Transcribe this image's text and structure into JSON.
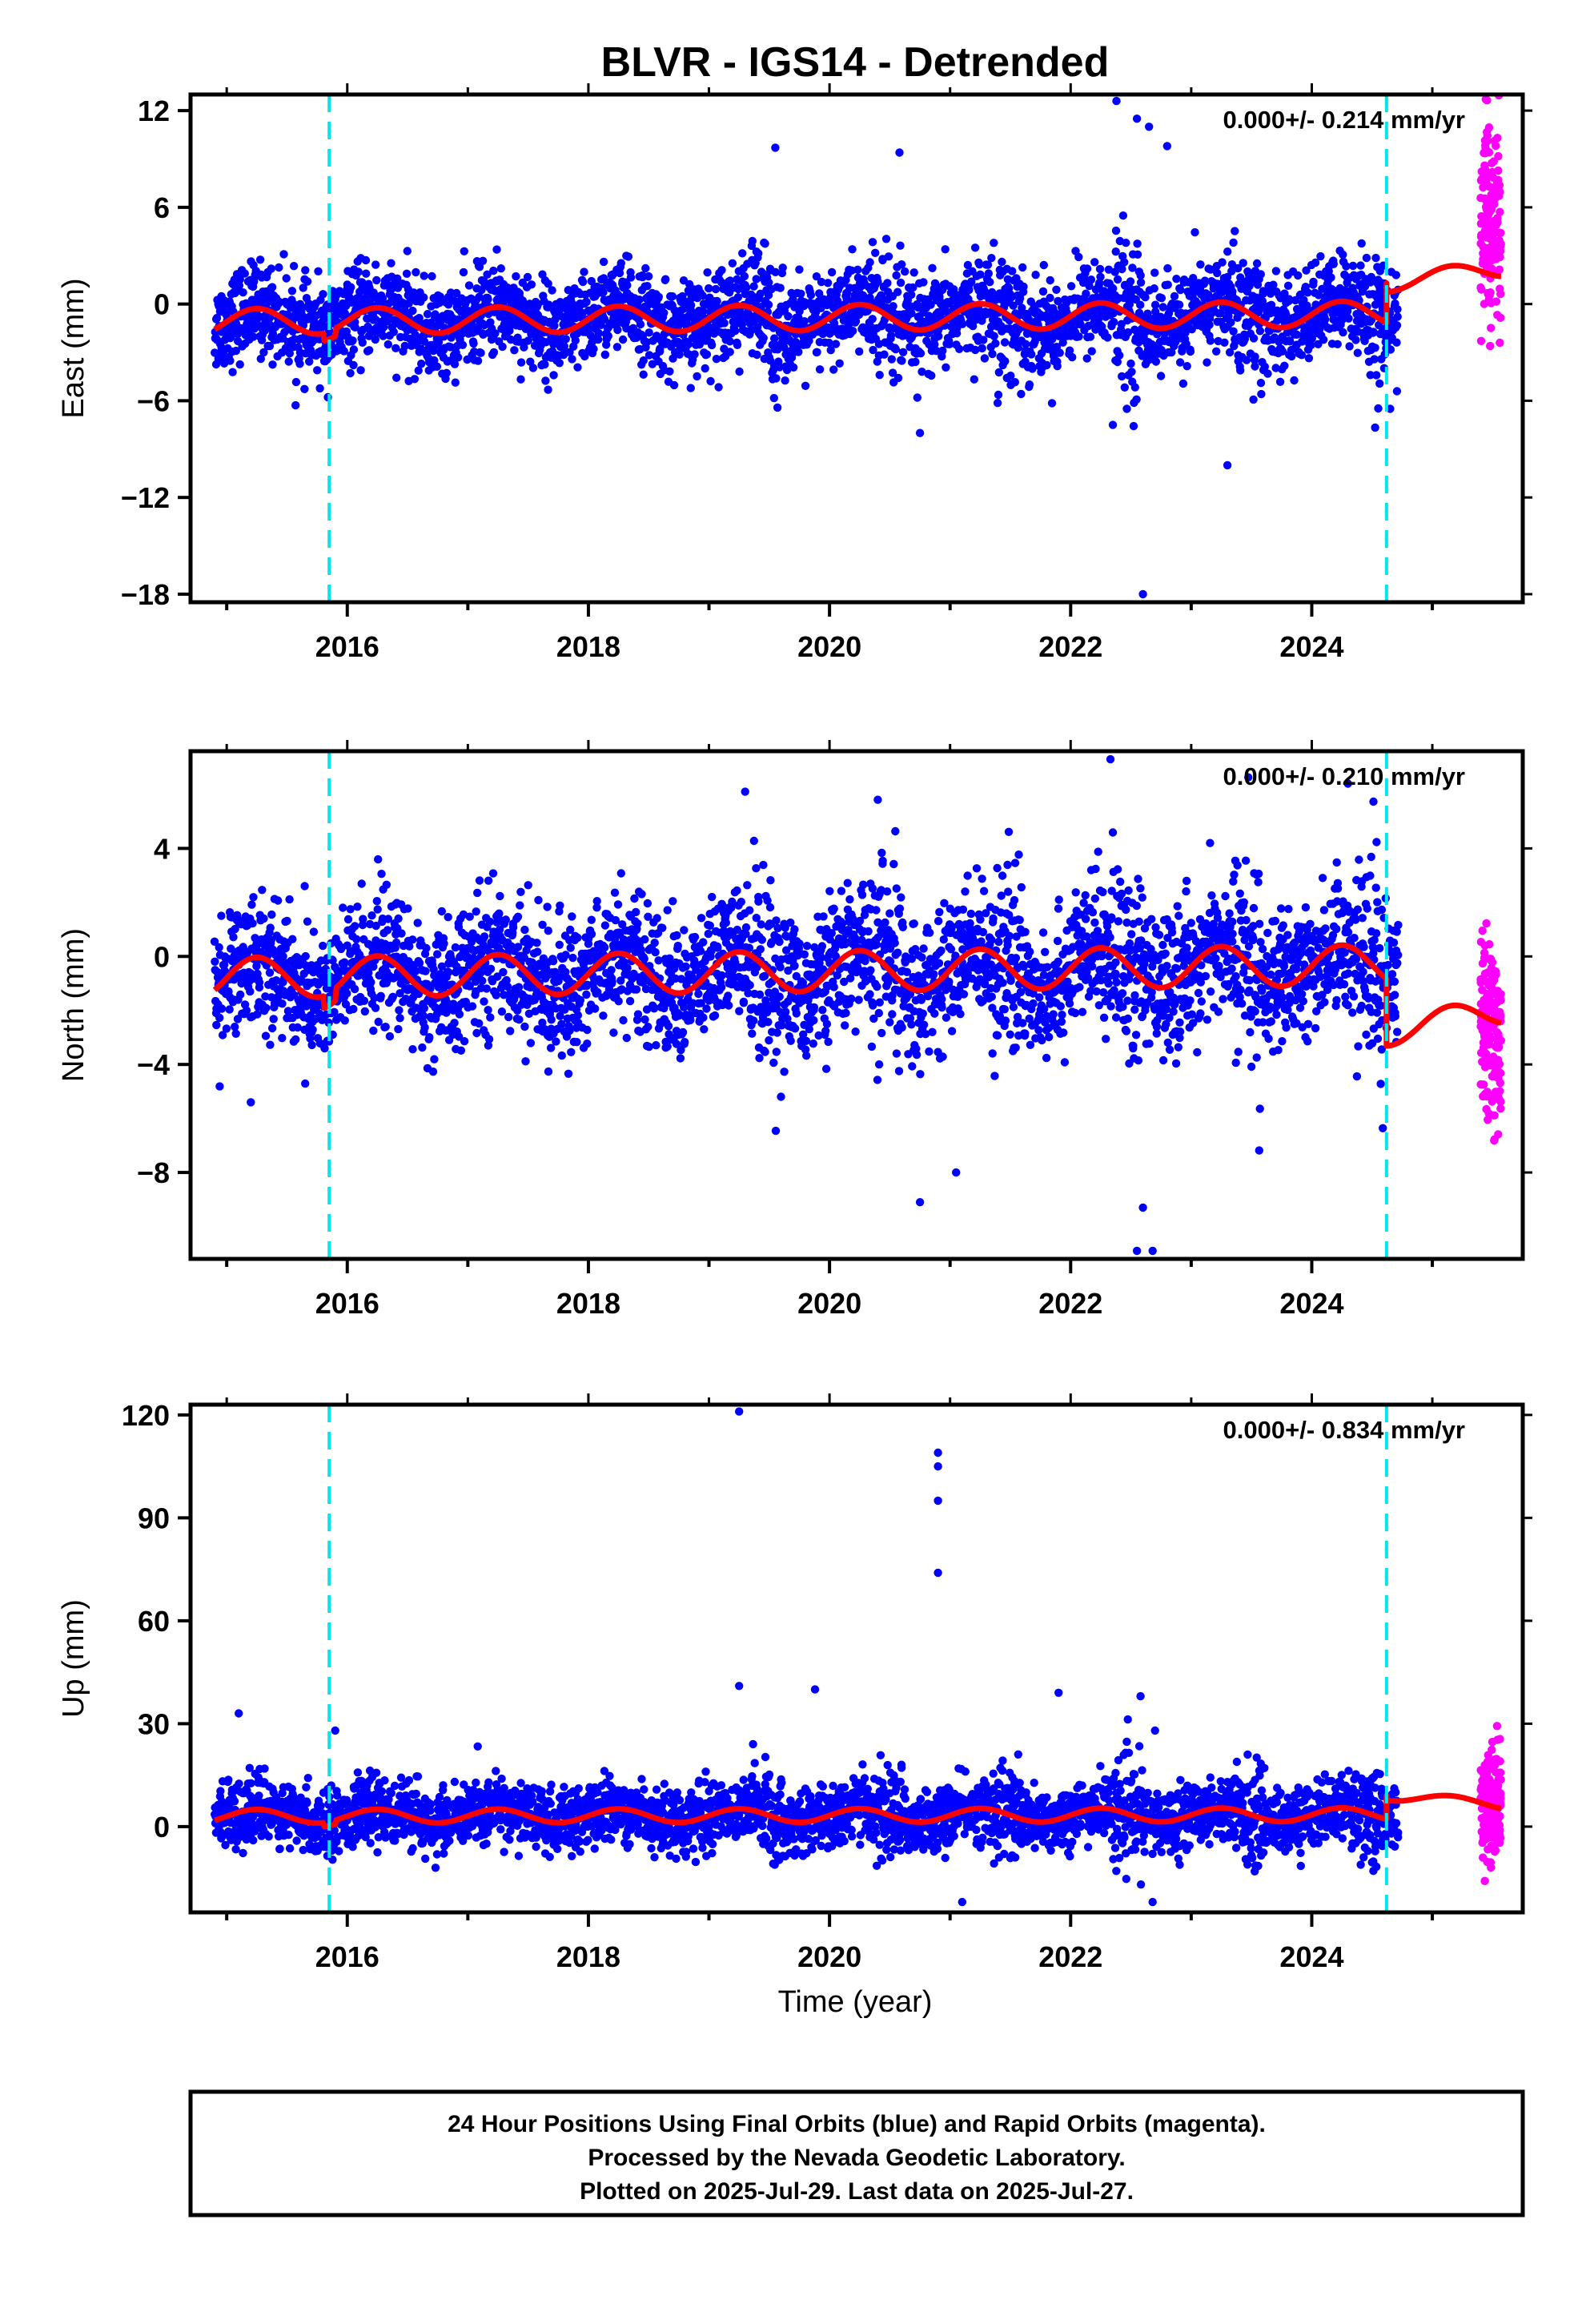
{
  "title": "BLVR - IGS14 - Detrended",
  "xlabel": "Time (year)",
  "caption": [
    "24 Hour Positions Using Final Orbits (blue) and Rapid Orbits (magenta).",
    "Processed by the Nevada Geodetic Laboratory.",
    "Plotted on 2025-Jul-29. Last data on 2025-Jul-27."
  ],
  "colors": {
    "final_points": "#0000ff",
    "rapid_points": "#ff00ff",
    "model_line": "#ff0000",
    "event_lines": "#00e5ee"
  },
  "chart_data": [
    {
      "type": "scatter",
      "ylabel": "East (mm)",
      "rate_label": "0.000+/- 0.214 mm/yr",
      "xlim": [
        2014.7,
        2025.75
      ],
      "ylim": [
        -18.5,
        13
      ],
      "yticks": [
        12,
        6,
        0,
        -6,
        -12,
        -18
      ],
      "ytick_labels": [
        "12",
        "6",
        "0",
        "−6",
        "−12",
        "−18"
      ],
      "xticks": [
        2016,
        2018,
        2020,
        2022,
        2024
      ],
      "event_lines": [
        2015.85,
        2024.62
      ],
      "final_range": [
        2014.9,
        2024.72
      ],
      "rapid_range": [
        2025.4,
        2025.57
      ],
      "noise": 1.4,
      "outliers": [
        [
          2022.38,
          12.6
        ],
        [
          2022.55,
          11.5
        ],
        [
          2022.65,
          11.0
        ],
        [
          2022.8,
          9.8
        ],
        [
          2019.55,
          9.7
        ],
        [
          2020.58,
          9.4
        ],
        [
          2022.6,
          -18.0
        ],
        [
          2020.75,
          -8.0
        ],
        [
          2022.35,
          -7.5
        ],
        [
          2023.3,
          -10.0
        ],
        [
          2024.65,
          -6.5
        ]
      ],
      "seasonal_amp": 0.8,
      "offset_after_event2": 0.6,
      "model_points": [
        [
          2014.9,
          -1.1
        ],
        [
          2025.57,
          2.2
        ]
      ],
      "rapid_mean": 5.0,
      "rapid_noise": 3.2
    },
    {
      "type": "scatter",
      "ylabel": "North (mm)",
      "rate_label": "0.000+/- 0.210 mm/yr",
      "xlim": [
        2014.7,
        2025.75
      ],
      "ylim": [
        -11.2,
        7.6
      ],
      "yticks": [
        4,
        0,
        -4,
        -8
      ],
      "ytick_labels": [
        "4",
        "0",
        "−4",
        "−8"
      ],
      "xticks": [
        2016,
        2018,
        2020,
        2022,
        2024
      ],
      "event_lines": [
        2015.85,
        2024.62
      ],
      "final_range": [
        2014.9,
        2024.72
      ],
      "rapid_range": [
        2025.4,
        2025.57
      ],
      "noise": 1.2,
      "outliers": [
        [
          2022.33,
          7.3
        ],
        [
          2019.3,
          6.1
        ],
        [
          2020.4,
          5.8
        ],
        [
          2024.3,
          6.4
        ],
        [
          2022.55,
          -10.9
        ],
        [
          2022.68,
          -10.9
        ],
        [
          2022.6,
          -9.3
        ],
        [
          2020.75,
          -9.1
        ],
        [
          2021.05,
          -8.0
        ],
        [
          2015.2,
          -5.4
        ]
      ],
      "seasonal_amp": 0.75,
      "offset_after_event2": -2.9,
      "model_points": [
        [
          2014.9,
          -0.8
        ],
        [
          2025.57,
          -2.0
        ]
      ],
      "rapid_mean": -2.5,
      "rapid_noise": 1.8
    },
    {
      "type": "scatter",
      "ylabel": "Up (mm)",
      "rate_label": "0.000+/- 0.834 mm/yr",
      "xlim": [
        2014.7,
        2025.75
      ],
      "ylim": [
        -25,
        123
      ],
      "yticks": [
        120,
        90,
        60,
        30,
        0
      ],
      "ytick_labels": [
        "120",
        "90",
        "60",
        "30",
        "0"
      ],
      "xticks": [
        2016,
        2018,
        2020,
        2022,
        2024
      ],
      "event_lines": [
        2015.85,
        2024.62
      ],
      "final_range": [
        2014.9,
        2024.72
      ],
      "rapid_range": [
        2025.4,
        2025.57
      ],
      "noise": 4.5,
      "outliers": [
        [
          2019.25,
          121
        ],
        [
          2020.9,
          109
        ],
        [
          2020.9,
          105
        ],
        [
          2020.9,
          95
        ],
        [
          2020.9,
          74
        ],
        [
          2019.25,
          41
        ],
        [
          2019.88,
          40
        ],
        [
          2021.9,
          39
        ],
        [
          2022.58,
          38
        ],
        [
          2015.1,
          33
        ],
        [
          2022.7,
          28
        ],
        [
          2015.9,
          28
        ],
        [
          2021.1,
          -22
        ],
        [
          2022.68,
          -22
        ]
      ],
      "seasonal_amp": 2.0,
      "offset_after_event2": 9.0,
      "model_points": [
        [
          2014.9,
          3.0
        ],
        [
          2025.57,
          6.5
        ]
      ],
      "rapid_mean": 7.0,
      "rapid_noise": 8.0
    }
  ]
}
